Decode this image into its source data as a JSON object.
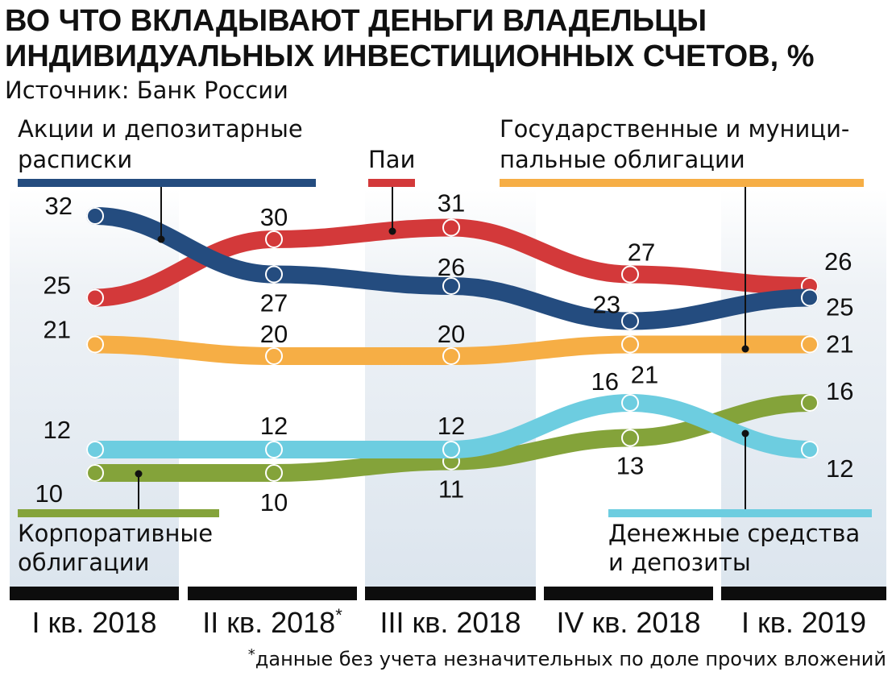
{
  "chart_data": {
    "type": "line",
    "title": [
      "ВО ЧТО ВКЛАДЫВАЮТ ДЕНЬГИ ВЛАДЕЛЬЦЫ",
      "ИНДИВИДУАЛЬНЫХ ИНВЕСТИЦИОННЫХ СЧЕТОВ, %"
    ],
    "source": "Источник: Банк России",
    "categories": [
      "I кв. 2018",
      "II кв. 2018",
      "III кв. 2018",
      "IV кв. 2018",
      "I кв. 2019"
    ],
    "category_marks": [
      "",
      "*",
      "",
      "",
      ""
    ],
    "ylim": [
      10,
      32
    ],
    "series": [
      {
        "key": "gov",
        "name": [
          "Государственные и муници-",
          "пальные облигации"
        ],
        "color": "#f6ae45",
        "values": [
          21,
          20,
          20,
          21,
          21
        ]
      },
      {
        "key": "corp",
        "name": [
          "Корпоративные",
          "облигации"
        ],
        "color": "#84a33a",
        "values": [
          10,
          10,
          11,
          13,
          16
        ]
      },
      {
        "key": "cash",
        "name": [
          "Денежные средства",
          "и депозиты"
        ],
        "color": "#6dcde0",
        "values": [
          12,
          12,
          12,
          16,
          12
        ]
      },
      {
        "key": "funds",
        "name": [
          "Паи"
        ],
        "color": "#d3393a",
        "values": [
          25,
          30,
          31,
          27,
          26
        ]
      },
      {
        "key": "stocks",
        "name": [
          "Акции и депозитарные",
          "расписки"
        ],
        "color": "#244c7f",
        "values": [
          32,
          27,
          26,
          23,
          25
        ]
      }
    ],
    "footnote_mark": "*",
    "footnote": "данные без учета незначительных по доле прочих вложений"
  }
}
